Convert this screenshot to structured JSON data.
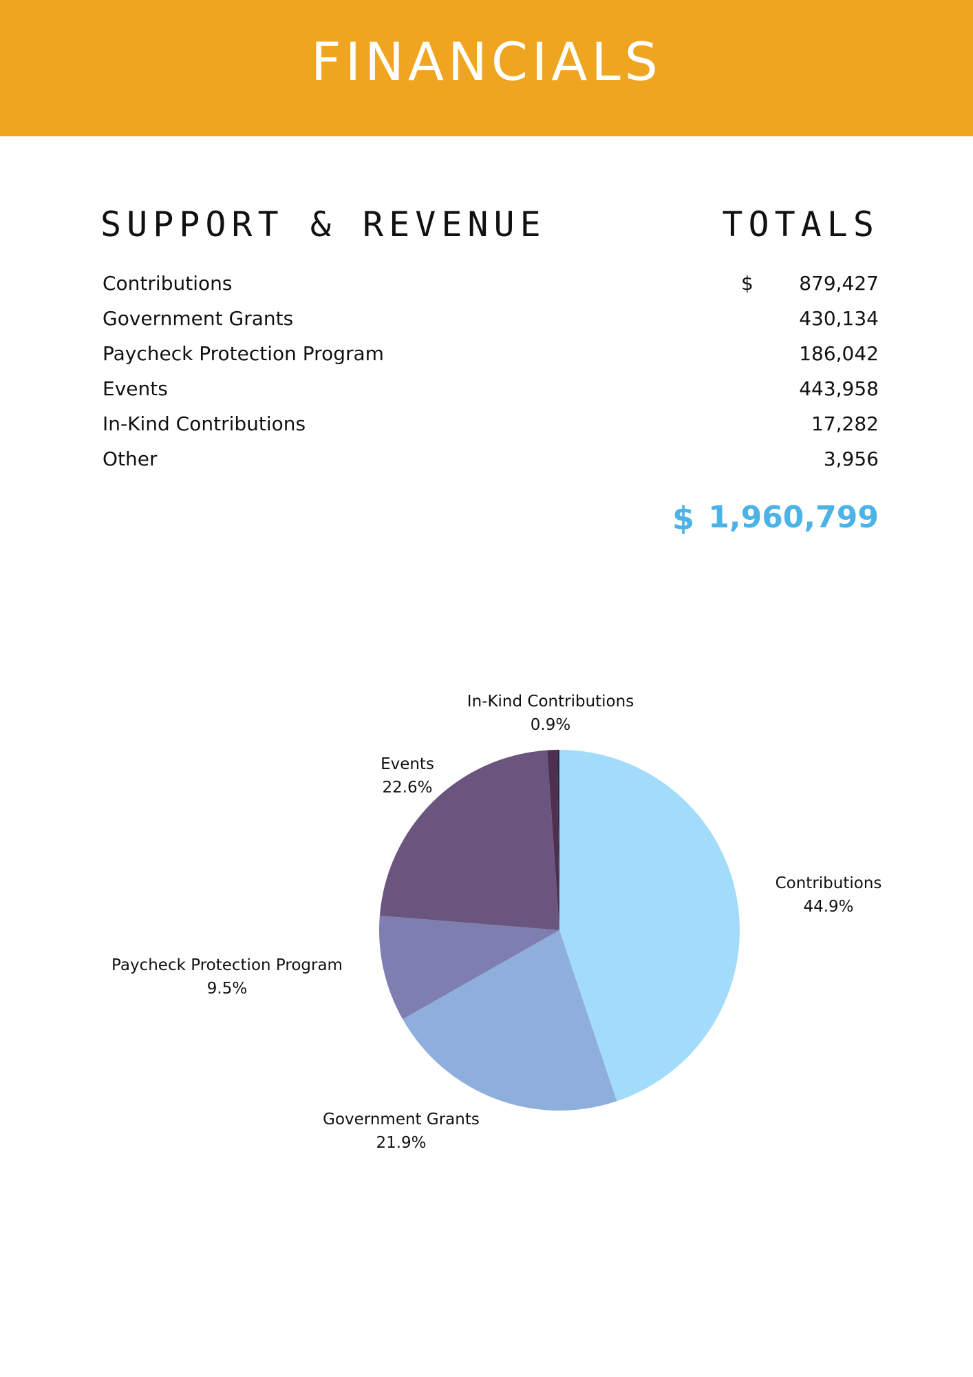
{
  "header": {
    "title": "FINANCIALS"
  },
  "table": {
    "section_title": "SUPPORT & REVENUE",
    "totals_header": "TOTALS",
    "currency_symbol": "$",
    "rows": [
      {
        "label": "Contributions",
        "value": "879,427"
      },
      {
        "label": "Government Grants",
        "value": "430,134"
      },
      {
        "label": "Paycheck Protection Program",
        "value": "186,042"
      },
      {
        "label": "Events",
        "value": "443,958"
      },
      {
        "label": "In-Kind Contributions",
        "value": "17,282"
      },
      {
        "label": "Other",
        "value": "3,956"
      }
    ],
    "total": {
      "currency": "$",
      "value": "1,960,799"
    }
  },
  "colors": {
    "banner": "#F0A520",
    "total": "#4BB3E6"
  },
  "chart_data": {
    "type": "pie",
    "title": "",
    "slices": [
      {
        "label": "Contributions",
        "value": 879427,
        "percent_label": "44.9%",
        "color": "#A3DBFB"
      },
      {
        "label": "Government Grants",
        "value": 430134,
        "percent_label": "21.9%",
        "color": "#8EAFDC"
      },
      {
        "label": "Paycheck Protection Program",
        "value": 186042,
        "percent_label": "9.5%",
        "color": "#7E7FB0"
      },
      {
        "label": "Events",
        "value": 443958,
        "percent_label": "22.6%",
        "color": "#6A557E"
      },
      {
        "label": "In-Kind Contributions",
        "value": 17282,
        "percent_label": "0.9%",
        "color": "#4F2F4E"
      },
      {
        "label": "Other",
        "value": 3956,
        "percent_label": "",
        "color": "#2E2A45"
      }
    ]
  }
}
